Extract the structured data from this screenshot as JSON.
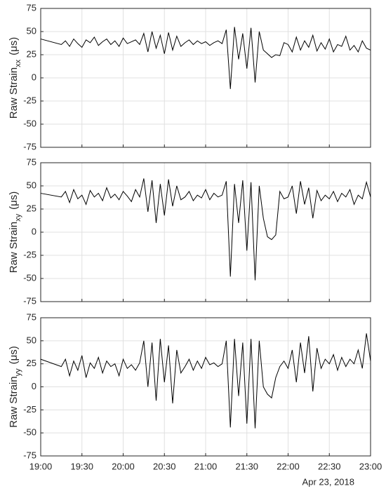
{
  "chart_data": [
    {
      "type": "line",
      "ylabel": "Raw Strain",
      "ylabel_sub": "xx",
      "ylabel_unit": "(μs)",
      "ylim": [
        -75,
        75
      ],
      "yticks": [
        -75,
        -50,
        -25,
        0,
        25,
        50,
        75
      ],
      "xlim": [
        "19:00",
        "23:00"
      ],
      "xticks": [
        "19:00",
        "19:30",
        "20:00",
        "20:30",
        "21:00",
        "21:30",
        "22:00",
        "22:30",
        "23:00"
      ],
      "grid": true,
      "x": [
        "19:00",
        "19:15",
        "19:18",
        "19:21",
        "19:24",
        "19:27",
        "19:30",
        "19:33",
        "19:36",
        "19:39",
        "19:42",
        "19:45",
        "19:48",
        "19:51",
        "19:54",
        "19:57",
        "20:00",
        "20:03",
        "20:06",
        "20:09",
        "20:12",
        "20:15",
        "20:18",
        "20:21",
        "20:24",
        "20:27",
        "20:30",
        "20:33",
        "20:36",
        "20:39",
        "20:42",
        "20:45",
        "20:48",
        "20:51",
        "20:54",
        "20:57",
        "21:00",
        "21:03",
        "21:06",
        "21:09",
        "21:12",
        "21:15",
        "21:18",
        "21:21",
        "21:24",
        "21:27",
        "21:30",
        "21:33",
        "21:36",
        "21:39",
        "21:42",
        "21:45",
        "21:48",
        "21:51",
        "21:54",
        "21:57",
        "22:00",
        "22:03",
        "22:06",
        "22:09",
        "22:12",
        "22:15",
        "22:18",
        "22:21",
        "22:24",
        "22:27",
        "22:30",
        "22:33",
        "22:36",
        "22:39",
        "22:42",
        "22:45",
        "22:48",
        "22:51",
        "22:54",
        "22:57",
        "23:00"
      ],
      "series": [
        {
          "color": "#000000",
          "values": [
            42,
            36,
            40,
            34,
            42,
            37,
            33,
            41,
            38,
            44,
            35,
            39,
            42,
            36,
            40,
            34,
            43,
            37,
            39,
            41,
            36,
            48,
            28,
            50,
            32,
            46,
            26,
            49,
            30,
            45,
            34,
            38,
            41,
            36,
            40,
            37,
            39,
            35,
            38,
            40,
            37,
            52,
            -12,
            55,
            20,
            48,
            10,
            54,
            -5,
            50,
            30,
            26,
            22,
            25,
            24,
            38,
            36,
            28,
            44,
            30,
            40,
            33,
            46,
            29,
            38,
            31,
            42,
            28,
            36,
            34,
            45,
            30,
            35,
            28,
            40,
            32,
            30
          ]
        }
      ]
    },
    {
      "type": "line",
      "ylabel": "Raw Strain",
      "ylabel_sub": "xy",
      "ylabel_unit": "(μs)",
      "ylim": [
        -75,
        75
      ],
      "yticks": [
        -75,
        -50,
        -25,
        0,
        25,
        50,
        75
      ],
      "xlim": [
        "19:00",
        "23:00"
      ],
      "xticks": [
        "19:00",
        "19:30",
        "20:00",
        "20:30",
        "21:00",
        "21:30",
        "22:00",
        "22:30",
        "23:00"
      ],
      "grid": true,
      "x": [
        "19:00",
        "19:15",
        "19:18",
        "19:21",
        "19:24",
        "19:27",
        "19:30",
        "19:33",
        "19:36",
        "19:39",
        "19:42",
        "19:45",
        "19:48",
        "19:51",
        "19:54",
        "19:57",
        "20:00",
        "20:03",
        "20:06",
        "20:09",
        "20:12",
        "20:15",
        "20:18",
        "20:21",
        "20:24",
        "20:27",
        "20:30",
        "20:33",
        "20:36",
        "20:39",
        "20:42",
        "20:45",
        "20:48",
        "20:51",
        "20:54",
        "20:57",
        "21:00",
        "21:03",
        "21:06",
        "21:09",
        "21:12",
        "21:15",
        "21:18",
        "21:21",
        "21:24",
        "21:27",
        "21:30",
        "21:33",
        "21:36",
        "21:39",
        "21:42",
        "21:45",
        "21:48",
        "21:51",
        "21:54",
        "21:57",
        "22:00",
        "22:03",
        "22:06",
        "22:09",
        "22:12",
        "22:15",
        "22:18",
        "22:21",
        "22:24",
        "22:27",
        "22:30",
        "22:33",
        "22:36",
        "22:39",
        "22:42",
        "22:45",
        "22:48",
        "22:51",
        "22:54",
        "22:57",
        "23:00"
      ],
      "series": [
        {
          "color": "#000000",
          "values": [
            42,
            38,
            44,
            32,
            46,
            36,
            40,
            30,
            45,
            38,
            42,
            34,
            48,
            37,
            41,
            35,
            44,
            39,
            33,
            46,
            38,
            58,
            22,
            56,
            10,
            52,
            18,
            57,
            28,
            50,
            35,
            38,
            44,
            34,
            40,
            37,
            46,
            35,
            42,
            38,
            40,
            55,
            -48,
            52,
            10,
            56,
            -20,
            54,
            -52,
            50,
            15,
            -5,
            -8,
            -3,
            44,
            36,
            38,
            50,
            20,
            55,
            30,
            48,
            15,
            45,
            34,
            40,
            36,
            44,
            33,
            42,
            38,
            46,
            30,
            40,
            36,
            54,
            38
          ]
        }
      ]
    },
    {
      "type": "line",
      "ylabel": "Raw Strain",
      "ylabel_sub": "yy",
      "ylabel_unit": "(μs)",
      "ylim": [
        -75,
        75
      ],
      "yticks": [
        -75,
        -50,
        -25,
        0,
        25,
        50,
        75
      ],
      "xlim": [
        "19:00",
        "23:00"
      ],
      "xticks": [
        "19:00",
        "19:30",
        "20:00",
        "20:30",
        "21:00",
        "21:30",
        "22:00",
        "22:30",
        "23:00"
      ],
      "grid": true,
      "xlabel": "Apr 23, 2018",
      "x": [
        "19:00",
        "19:15",
        "19:18",
        "19:21",
        "19:24",
        "19:27",
        "19:30",
        "19:33",
        "19:36",
        "19:39",
        "19:42",
        "19:45",
        "19:48",
        "19:51",
        "19:54",
        "19:57",
        "20:00",
        "20:03",
        "20:06",
        "20:09",
        "20:12",
        "20:15",
        "20:18",
        "20:21",
        "20:24",
        "20:27",
        "20:30",
        "20:33",
        "20:36",
        "20:39",
        "20:42",
        "20:45",
        "20:48",
        "20:51",
        "20:54",
        "20:57",
        "21:00",
        "21:03",
        "21:06",
        "21:09",
        "21:12",
        "21:15",
        "21:18",
        "21:21",
        "21:24",
        "21:27",
        "21:30",
        "21:33",
        "21:36",
        "21:39",
        "21:42",
        "21:45",
        "21:48",
        "21:51",
        "21:54",
        "21:57",
        "22:00",
        "22:03",
        "22:06",
        "22:09",
        "22:12",
        "22:15",
        "22:18",
        "22:21",
        "22:24",
        "22:27",
        "22:30",
        "22:33",
        "22:36",
        "22:39",
        "22:42",
        "22:45",
        "22:48",
        "22:51",
        "22:54",
        "22:57",
        "23:00"
      ],
      "series": [
        {
          "color": "#000000",
          "values": [
            30,
            22,
            30,
            12,
            28,
            18,
            34,
            10,
            26,
            20,
            32,
            15,
            28,
            22,
            25,
            12,
            30,
            20,
            24,
            18,
            26,
            50,
            0,
            48,
            -15,
            52,
            5,
            45,
            -18,
            40,
            15,
            22,
            30,
            18,
            28,
            20,
            32,
            24,
            26,
            22,
            25,
            50,
            -44,
            52,
            -10,
            48,
            -40,
            52,
            -45,
            50,
            0,
            -8,
            -12,
            10,
            22,
            28,
            20,
            40,
            5,
            48,
            15,
            55,
            -5,
            42,
            20,
            30,
            25,
            35,
            18,
            32,
            22,
            30,
            25,
            40,
            20,
            58,
            28
          ]
        }
      ]
    }
  ]
}
